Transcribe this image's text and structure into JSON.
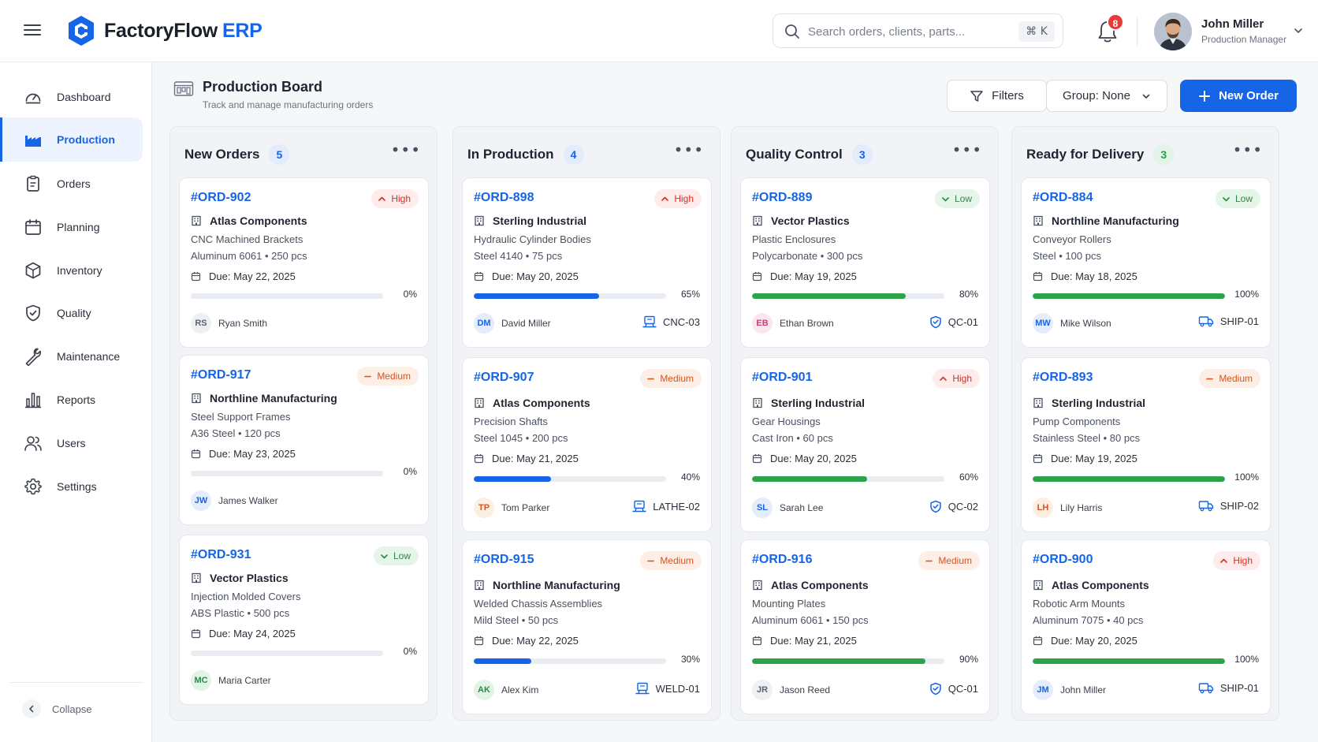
{
  "app": {
    "name": "FactoryFlow",
    "accent": "ERP"
  },
  "search": {
    "placeholder": "Search orders, clients, parts...",
    "shortcut": "⌘ K"
  },
  "notifications": {
    "count": "8"
  },
  "user": {
    "name": "John Miller",
    "role": "Production Manager"
  },
  "sidebar": {
    "items": [
      {
        "label": "Dashboard",
        "icon": "gauge-icon"
      },
      {
        "label": "Production",
        "icon": "factory-icon",
        "active": true
      },
      {
        "label": "Orders",
        "icon": "clipboard-icon"
      },
      {
        "label": "Planning",
        "icon": "calendar-icon"
      },
      {
        "label": "Inventory",
        "icon": "box-icon"
      },
      {
        "label": "Quality",
        "icon": "shield-check-icon"
      },
      {
        "label": "Maintenance",
        "icon": "wrench-icon"
      },
      {
        "label": "Reports",
        "icon": "bar-chart-icon"
      },
      {
        "label": "Users",
        "icon": "users-icon"
      },
      {
        "label": "Settings",
        "icon": "gear-icon"
      }
    ],
    "collapse_label": "Collapse"
  },
  "page": {
    "title": "Production Board",
    "subtitle": "Track and manage manufacturing orders"
  },
  "toolbar": {
    "filters_label": "Filters",
    "group_label": "Group: None",
    "new_order_label": "New Order"
  },
  "colors": {
    "primary": "#1565e6",
    "high": "#d93025",
    "medium": "#d9531e",
    "low": "#2a8a42",
    "progress_green": "#2ca24a"
  },
  "columns": [
    {
      "title": "New Orders",
      "count": "5",
      "count_color": "blue",
      "cards": [
        {
          "id": "#ORD-902",
          "priority": "High",
          "client": "Atlas Components",
          "part": "CNC Machined Brackets",
          "material": "Aluminum 6061 • 250 pcs",
          "due": "Due: May 22, 2025",
          "progress": 0,
          "progress_label": "0%",
          "assignee": "Ryan Smith",
          "initials": "RS",
          "avatar_bg": "#eef0f4",
          "avatar_fg": "#5c6370",
          "machine": "",
          "machine_icon": ""
        },
        {
          "id": "#ORD-917",
          "priority": "Medium",
          "client": "Northline Manufacturing",
          "part": "Steel Support Frames",
          "material": "A36 Steel • 120 pcs",
          "due": "Due: May 23, 2025",
          "progress": 0,
          "progress_label": "0%",
          "assignee": "James Walker",
          "initials": "JW",
          "avatar_bg": "#e5edfc",
          "avatar_fg": "#1565e6",
          "machine": "",
          "machine_icon": ""
        },
        {
          "id": "#ORD-931",
          "priority": "Low",
          "client": "Vector Plastics",
          "part": "Injection Molded Covers",
          "material": "ABS Plastic • 500 pcs",
          "due": "Due: May 24, 2025",
          "progress": 0,
          "progress_label": "0%",
          "assignee": "Maria Carter",
          "initials": "MC",
          "avatar_bg": "#e2f4e6",
          "avatar_fg": "#2a8a42",
          "machine": "",
          "machine_icon": ""
        }
      ]
    },
    {
      "title": "In Production",
      "count": "4",
      "count_color": "blue",
      "cards": [
        {
          "id": "#ORD-898",
          "priority": "High",
          "client": "Sterling Industrial",
          "part": "Hydraulic Cylinder Bodies",
          "material": "Steel 4140 • 75 pcs",
          "due": "Due: May 20, 2025",
          "progress": 65,
          "progress_label": "65%",
          "assignee": "David Miller",
          "initials": "DM",
          "avatar_bg": "#e5edfc",
          "avatar_fg": "#1565e6",
          "machine": "CNC-03",
          "machine_icon": "machine-icon"
        },
        {
          "id": "#ORD-907",
          "priority": "Medium",
          "client": "Atlas Components",
          "part": "Precision Shafts",
          "material": "Steel 1045 • 200 pcs",
          "due": "Due: May 21, 2025",
          "progress": 40,
          "progress_label": "40%",
          "assignee": "Tom Parker",
          "initials": "TP",
          "avatar_bg": "#fdeee2",
          "avatar_fg": "#d9531e",
          "machine": "LATHE-02",
          "machine_icon": "machine-icon"
        },
        {
          "id": "#ORD-915",
          "priority": "Medium",
          "client": "Northline Manufacturing",
          "part": "Welded Chassis Assemblies",
          "material": "Mild Steel • 50 pcs",
          "due": "Due: May 22, 2025",
          "progress": 30,
          "progress_label": "30%",
          "assignee": "Alex Kim",
          "initials": "AK",
          "avatar_bg": "#e2f4e6",
          "avatar_fg": "#2a8a42",
          "machine": "WELD-01",
          "machine_icon": "machine-icon"
        }
      ]
    },
    {
      "title": "Quality Control",
      "count": "3",
      "count_color": "blue",
      "cards": [
        {
          "id": "#ORD-889",
          "priority": "Low",
          "client": "Vector Plastics",
          "part": "Plastic Enclosures",
          "material": "Polycarbonate • 300 pcs",
          "due": "Due: May 19, 2025",
          "progress": 80,
          "progress_label": "80%",
          "assignee": "Ethan Brown",
          "initials": "EB",
          "avatar_bg": "#fbe6f0",
          "avatar_fg": "#c2417a",
          "machine": "QC-01",
          "machine_icon": "shield-check-icon"
        },
        {
          "id": "#ORD-901",
          "priority": "High",
          "client": "Sterling Industrial",
          "part": "Gear Housings",
          "material": "Cast Iron • 60 pcs",
          "due": "Due: May 20, 2025",
          "progress": 60,
          "progress_label": "60%",
          "assignee": "Sarah Lee",
          "initials": "SL",
          "avatar_bg": "#e5edfc",
          "avatar_fg": "#1565e6",
          "machine": "QC-02",
          "machine_icon": "shield-check-icon"
        },
        {
          "id": "#ORD-916",
          "priority": "Medium",
          "client": "Atlas Components",
          "part": "Mounting Plates",
          "material": "Aluminum 6061 • 150 pcs",
          "due": "Due: May 21, 2025",
          "progress": 90,
          "progress_label": "90%",
          "assignee": "Jason Reed",
          "initials": "JR",
          "avatar_bg": "#eef0f4",
          "avatar_fg": "#5c6370",
          "machine": "QC-01",
          "machine_icon": "shield-check-icon"
        }
      ]
    },
    {
      "title": "Ready for Delivery",
      "count": "3",
      "count_color": "green",
      "cards": [
        {
          "id": "#ORD-884",
          "priority": "Low",
          "client": "Northline Manufacturing",
          "part": "Conveyor Rollers",
          "material": "Steel • 100 pcs",
          "due": "Due: May 18, 2025",
          "progress": 100,
          "progress_label": "100%",
          "assignee": "Mike Wilson",
          "initials": "MW",
          "avatar_bg": "#e5edfc",
          "avatar_fg": "#1565e6",
          "machine": "SHIP-01",
          "machine_icon": "truck-icon"
        },
        {
          "id": "#ORD-893",
          "priority": "Medium",
          "client": "Sterling Industrial",
          "part": "Pump Components",
          "material": "Stainless Steel • 80 pcs",
          "due": "Due: May 19, 2025",
          "progress": 100,
          "progress_label": "100%",
          "assignee": "Lily Harris",
          "initials": "LH",
          "avatar_bg": "#fdeee2",
          "avatar_fg": "#d9531e",
          "machine": "SHIP-02",
          "machine_icon": "truck-icon"
        },
        {
          "id": "#ORD-900",
          "priority": "High",
          "client": "Atlas Components",
          "part": "Robotic Arm Mounts",
          "material": "Aluminum 7075 • 40 pcs",
          "due": "Due: May 20, 2025",
          "progress": 100,
          "progress_label": "100%",
          "assignee": "John Miller",
          "initials": "JM",
          "avatar_bg": "#e5edfc",
          "avatar_fg": "#1565e6",
          "machine": "SHIP-01",
          "machine_icon": "truck-icon"
        }
      ]
    }
  ]
}
